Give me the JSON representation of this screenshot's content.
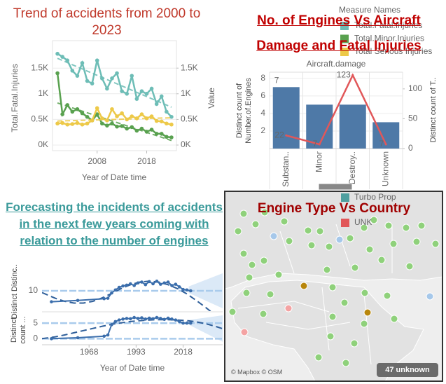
{
  "chart_data": [
    {
      "type": "line",
      "title": "Trend of accidents from 2000 to 2023",
      "xlabel": "Year of Date time",
      "ylabel": "Total.Fatal.Injuries",
      "y2label": "Value",
      "x": [
        2000,
        2001,
        2002,
        2003,
        2004,
        2005,
        2006,
        2007,
        2008,
        2009,
        2010,
        2011,
        2012,
        2013,
        2014,
        2015,
        2016,
        2017,
        2018,
        2019,
        2020,
        2021,
        2022,
        2023
      ],
      "xlim": [
        1999,
        2024
      ],
      "xticks": [
        2008,
        2018
      ],
      "ylim": [
        0,
        1940
      ],
      "yticks": [
        {
          "value": 0,
          "label": "0K"
        },
        {
          "value": 500,
          "label": "0.5K"
        },
        {
          "value": 1000,
          "label": "1K"
        },
        {
          "value": 1500,
          "label": "1.5K"
        }
      ],
      "y2lim": [
        0,
        1940
      ],
      "y2ticks": [
        {
          "value": 0,
          "label": "0K"
        },
        {
          "value": 500,
          "label": "0.5K"
        },
        {
          "value": 1000,
          "label": "1K"
        },
        {
          "value": 1500,
          "label": "1.5K"
        }
      ],
      "grid": true,
      "trend_lines": true,
      "legend_title": "Measure Names",
      "series": [
        {
          "name": "Total.Fatal.Injuries",
          "color": "#6dbdb6",
          "values": [
            1780,
            1720,
            1650,
            1450,
            1350,
            1600,
            1250,
            1200,
            1650,
            1300,
            1100,
            1300,
            1400,
            1050,
            1000,
            1350,
            900,
            1050,
            1000,
            1100,
            800,
            950,
            650,
            550
          ]
        },
        {
          "name": "Total.Minor.Injuries",
          "color": "#59a14f",
          "axis": "y2",
          "values": [
            1400,
            600,
            780,
            650,
            700,
            620,
            550,
            480,
            600,
            420,
            380,
            420,
            360,
            370,
            320,
            350,
            280,
            320,
            260,
            300,
            220,
            220,
            160,
            150
          ]
        },
        {
          "name": "Total Serious Injuries",
          "color": "#edc948",
          "axis": "y2",
          "values": [
            420,
            430,
            400,
            410,
            430,
            400,
            420,
            480,
            720,
            520,
            480,
            700,
            560,
            620,
            500,
            560,
            520,
            600,
            520,
            560,
            470,
            460,
            420,
            400
          ]
        }
      ]
    },
    {
      "type": "bar_line",
      "title": "No. of Engines Vs Aircraft Damage and Fatal Injuries",
      "header": "Aircraft.damage",
      "ylabel": "Distinct count of Number.of.Engines",
      "y2label": "Distinct count of T..",
      "categories": [
        "Substan..",
        "Minor",
        "Destroy..",
        "Unknown"
      ],
      "ylim": [
        0,
        8.7
      ],
      "yticks": [
        2,
        4,
        6,
        8
      ],
      "y2lim": [
        0,
        128
      ],
      "y2ticks": [
        0,
        50,
        100
      ],
      "grid": true,
      "series": [
        {
          "type": "bar",
          "color": "#4e79a7",
          "values": [
            7,
            5,
            5,
            3
          ],
          "value_labels": [
            "7",
            null,
            null,
            null
          ]
        },
        {
          "type": "line",
          "axis": "y2",
          "color": "#e15759",
          "values": [
            22,
            7,
            123,
            7
          ]
        }
      ]
    },
    {
      "type": "forecast",
      "title": "Forecasting the incidents of accidents in the next few years coming with relation to the number of engines",
      "xlabel": "Year of Date time",
      "xlim": [
        1943,
        2039
      ],
      "xticks": [
        1968,
        1993,
        2018
      ],
      "color": "#3b6eac",
      "x": [
        1948,
        1962,
        1976,
        1978,
        1980,
        1982,
        1984,
        1986,
        1988,
        1990,
        1992,
        1994,
        1996,
        1998,
        2000,
        2002,
        2004,
        2006,
        2008,
        2010,
        2012,
        2014,
        2016,
        2018,
        2020,
        2022
      ],
      "trend_x": [
        1943,
        1950,
        1955,
        1960,
        1965,
        1970,
        1975,
        1980,
        1985,
        1990,
        1995,
        2000,
        2005,
        2010,
        2015,
        2020,
        2025,
        2030,
        2035,
        2039
      ],
      "band_x": [
        2021,
        2039
      ],
      "panes": [
        {
          "ylabel": "Distinct Distinc..",
          "ylim": [
            6,
            14
          ],
          "yticks": [
            10
          ],
          "values": [
            7.5,
            7.8,
            8.2,
            8.3,
            9.5,
            10.2,
            10.8,
            11.1,
            11.3,
            11.6,
            11.2,
            11.8,
            12.0,
            11.4,
            12.1,
            11.6,
            12.2,
            11.5,
            11.8,
            12.0,
            11.2,
            11.5,
            10.9,
            10.3,
            10.2,
            10.0
          ],
          "trend": [
            9.6,
            8.3,
            7.6,
            7.2,
            7.2,
            7.6,
            8.4,
            9.4,
            10.5,
            11.4,
            12.0,
            12.2,
            12.0,
            11.4,
            10.5,
            9.3,
            7.8,
            6.2,
            4.5,
            3.0
          ],
          "band_upper": [
            11,
            14
          ],
          "band_lower": [
            9.5,
            6
          ]
        },
        {
          "ylabel": "Distinct count ...",
          "ylim": [
            -1.5,
            7.5
          ],
          "yticks": [
            0,
            5
          ],
          "values": [
            0,
            0.3,
            0.8,
            1.2,
            4.5,
            5.5,
            6,
            6.3,
            6.5,
            6.4,
            6.8,
            6.5,
            6.7,
            6.3,
            6.6,
            6.4,
            6.8,
            6.5,
            6.2,
            6.6,
            6.3,
            6.0,
            5.5,
            5.0,
            5.0,
            5.0
          ],
          "trend": [
            0,
            0.6,
            1.2,
            1.9,
            2.6,
            3.3,
            4.0,
            4.6,
            5.1,
            5.5,
            5.8,
            6.0,
            6.1,
            6.1,
            6.0,
            5.8,
            5.4,
            4.8,
            4.0,
            3.2
          ],
          "band_upper": [
            6,
            7.5
          ],
          "band_lower": [
            4.5,
            -1
          ]
        }
      ]
    },
    {
      "type": "map",
      "title": "Engine Type Vs Country",
      "legend": [
        {
          "name": "Turbo Prop",
          "color": "#4e9f9f"
        },
        {
          "name": "UNK",
          "color": "#e15759"
        }
      ],
      "attribution": "© Mapbox © OSM",
      "badge": "47 unknown"
    }
  ]
}
